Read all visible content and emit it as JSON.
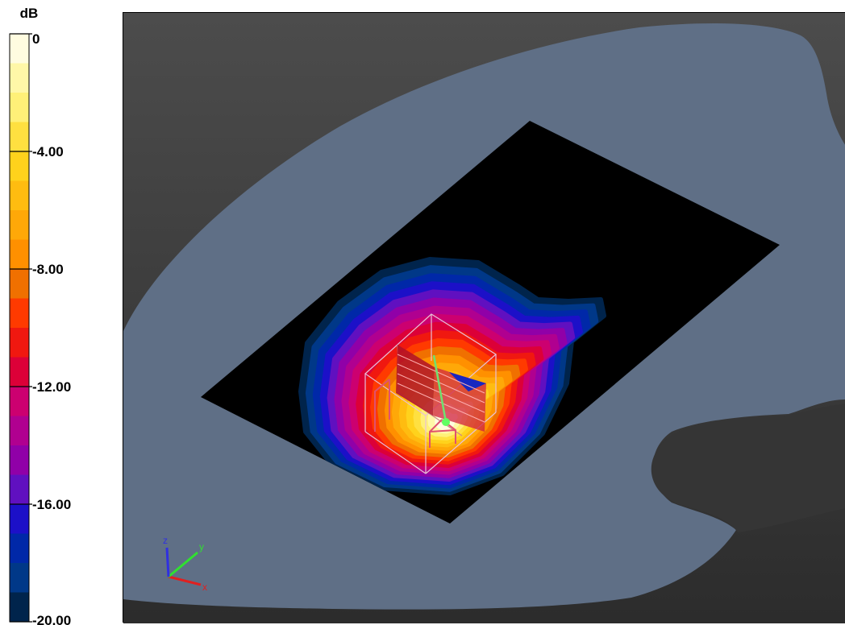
{
  "legend": {
    "unit": "dB",
    "max": 0,
    "min": -20,
    "step_db": 1,
    "labels": [
      {
        "value": 0,
        "text": "0"
      },
      {
        "value": -4,
        "text": "-4.00"
      },
      {
        "value": -8,
        "text": "-8.00"
      },
      {
        "value": -12,
        "text": "-12.00"
      },
      {
        "value": -16,
        "text": "-16.00"
      },
      {
        "value": -20,
        "text": "-20.00"
      }
    ],
    "colors": [
      "#fffce0",
      "#fff7a8",
      "#fff078",
      "#ffe040",
      "#ffd21c",
      "#ffbc10",
      "#ffa808",
      "#ff9000",
      "#f07000",
      "#ff3a00",
      "#f01810",
      "#dc0038",
      "#cc0070",
      "#b00090",
      "#9000a8",
      "#6010c0",
      "#1c10c8",
      "#0028a8",
      "#003888",
      "#00244c"
    ]
  },
  "axes": {
    "x_label": "x",
    "y_label": "y",
    "z_label": "z",
    "x_color": "#e02020",
    "y_color": "#30e030",
    "z_color": "#3030e0"
  },
  "scene": {
    "background_top": "#4c4c4c",
    "background_bottom": "#2c2c2c",
    "body_color": "#5f6f86",
    "plane_color": "#000000",
    "sar_peak_color": "#fffce0"
  }
}
